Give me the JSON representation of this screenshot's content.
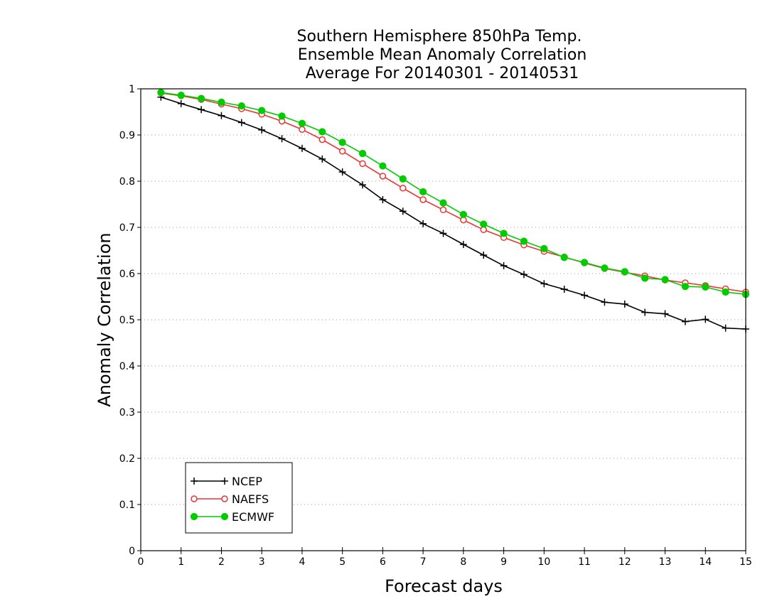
{
  "chart_data": {
    "type": "line",
    "title_lines": [
      "Southern Hemisphere 850hPa Temp.",
      "Ensemble Mean Anomaly Correlation",
      "Average For 20140301 - 20140531"
    ],
    "xlabel": "Forecast days",
    "ylabel": "Anomaly Correlation",
    "xlim": [
      0,
      15
    ],
    "ylim": [
      0,
      1
    ],
    "xticks": [
      0,
      1,
      2,
      3,
      4,
      5,
      6,
      7,
      8,
      9,
      10,
      11,
      12,
      13,
      14,
      15
    ],
    "yticks": [
      0,
      0.1,
      0.2,
      0.3,
      0.4,
      0.5,
      0.6,
      0.7,
      0.8,
      0.9,
      1
    ],
    "ytick_labels": [
      "0",
      "0.1",
      "0.2",
      "0.3",
      "0.4",
      "0.5",
      "0.6",
      "0.7",
      "0.8",
      "0.9",
      "1"
    ],
    "grid": "horizontal dotted",
    "legend_position": "bottom-left",
    "x": [
      0.5,
      1,
      1.5,
      2,
      2.5,
      3,
      3.5,
      4,
      4.5,
      5,
      5.5,
      6,
      6.5,
      7,
      7.5,
      8,
      8.5,
      9,
      9.5,
      10,
      10.5,
      11,
      11.5,
      12,
      12.5,
      13,
      13.5,
      14,
      14.5,
      15
    ],
    "series": [
      {
        "name": "NCEP",
        "color": "#000000",
        "marker": "plus",
        "values": [
          0.982,
          0.968,
          0.955,
          0.942,
          0.927,
          0.911,
          0.892,
          0.871,
          0.848,
          0.82,
          0.792,
          0.76,
          0.735,
          0.708,
          0.687,
          0.663,
          0.64,
          0.617,
          0.598,
          0.578,
          0.566,
          0.553,
          0.538,
          0.534,
          0.516,
          0.513,
          0.496,
          0.501,
          0.482,
          0.48
        ]
      },
      {
        "name": "NAEFS",
        "color": "#ee3333",
        "marker": "open-circle",
        "values": [
          0.991,
          0.985,
          0.977,
          0.967,
          0.957,
          0.945,
          0.93,
          0.912,
          0.89,
          0.865,
          0.838,
          0.811,
          0.785,
          0.76,
          0.738,
          0.716,
          0.695,
          0.678,
          0.662,
          0.648,
          0.636,
          0.623,
          0.611,
          0.603,
          0.595,
          0.586,
          0.58,
          0.574,
          0.567,
          0.56
        ]
      },
      {
        "name": "ECMWF",
        "color": "#00cc00",
        "marker": "filled-circle",
        "values": [
          0.992,
          0.986,
          0.979,
          0.971,
          0.963,
          0.953,
          0.941,
          0.925,
          0.907,
          0.884,
          0.86,
          0.833,
          0.805,
          0.777,
          0.753,
          0.728,
          0.707,
          0.687,
          0.67,
          0.654,
          0.635,
          0.624,
          0.612,
          0.604,
          0.59,
          0.587,
          0.572,
          0.571,
          0.56,
          0.555
        ]
      }
    ]
  }
}
